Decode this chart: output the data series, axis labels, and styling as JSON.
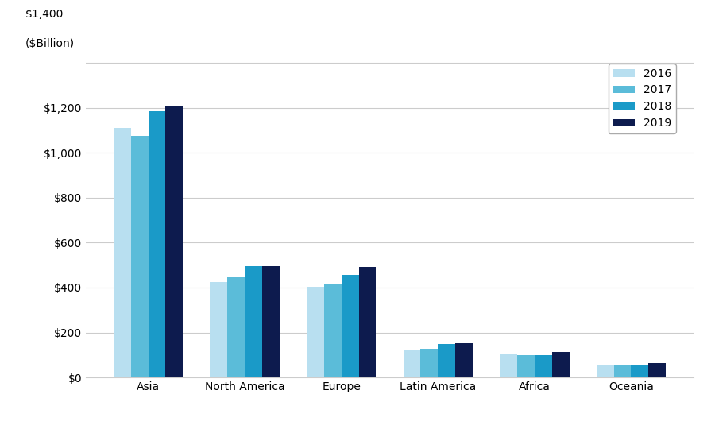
{
  "categories": [
    "Asia",
    "North America",
    "Europe",
    "Latin America",
    "Africa",
    "Oceania"
  ],
  "years": [
    "2016",
    "2017",
    "2018",
    "2019"
  ],
  "values": {
    "Asia": [
      1110,
      1075,
      1185,
      1205
    ],
    "North America": [
      425,
      445,
      495,
      497
    ],
    "Europe": [
      405,
      415,
      455,
      492
    ],
    "Latin America": [
      120,
      128,
      148,
      152
    ],
    "Africa": [
      105,
      100,
      100,
      115
    ],
    "Oceania": [
      52,
      52,
      58,
      63
    ]
  },
  "colors": [
    "#b8dff0",
    "#5bbcd9",
    "#1a9ac8",
    "#0d1b4e"
  ],
  "yticks": [
    0,
    200,
    400,
    600,
    800,
    1000,
    1200,
    1400
  ],
  "ytick_labels": [
    "$0",
    "$200",
    "$400",
    "$600",
    "$800",
    "$1,000",
    "$1,200",
    "$1,400"
  ],
  "ylim": [
    0,
    1450
  ],
  "bar_width": 0.18,
  "background_color": "#ffffff",
  "grid_color": "#cccccc"
}
